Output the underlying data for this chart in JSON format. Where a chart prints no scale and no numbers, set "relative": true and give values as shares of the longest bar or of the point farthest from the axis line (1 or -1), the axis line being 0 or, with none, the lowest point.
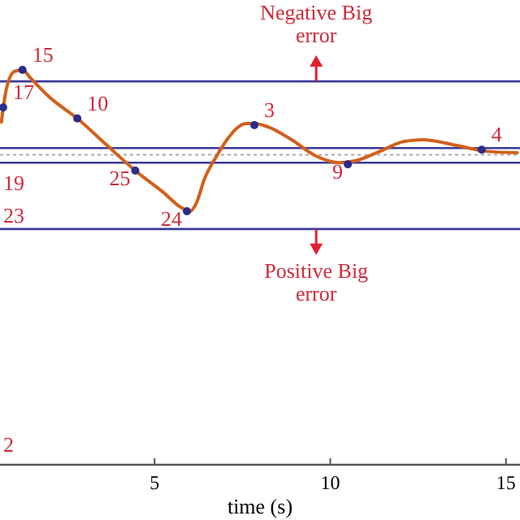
{
  "chart_data": {
    "type": "line",
    "relative": true,
    "xlabel": "time (s)",
    "xlim": [
      0.6,
      15.4
    ],
    "xticks": [
      5,
      10,
      15
    ],
    "series": [
      {
        "line_style": "solid",
        "color": "#d2601a",
        "x": [
          0.64,
          0.78,
          1.01,
          1.24,
          1.47,
          2.02,
          2.8,
          3.62,
          4.45,
          5.23,
          5.78,
          6.01,
          6.19,
          6.42,
          6.74,
          7.06,
          7.29,
          7.61,
          7.84,
          8.21,
          8.9,
          9.59,
          10.28,
          10.73,
          11.42,
          12.11,
          12.66,
          13.26,
          13.94,
          14.4,
          15.32
        ],
        "values": [
          0.868,
          0.951,
          0.996,
          1.0,
          0.979,
          0.93,
          0.877,
          0.811,
          0.745,
          0.691,
          0.65,
          0.642,
          0.663,
          0.724,
          0.778,
          0.823,
          0.848,
          0.864,
          0.864,
          0.856,
          0.823,
          0.782,
          0.765,
          0.77,
          0.794,
          0.819,
          0.823,
          0.815,
          0.802,
          0.794,
          0.79
        ]
      },
      {
        "type": "scatter",
        "marker": "circle",
        "color": "#2b2b8c",
        "x": [
          1.24,
          0.69,
          2.8,
          4.45,
          5.92,
          7.84,
          10.5,
          14.31
        ],
        "values": [
          1.0,
          0.905,
          0.877,
          0.745,
          0.642,
          0.86,
          0.761,
          0.798
        ]
      }
    ],
    "ref_lines": [
      {
        "axis": "y",
        "value": 0.971,
        "label": "Negative Big error",
        "color": "#3a3a9a",
        "line_style": "solid"
      },
      {
        "axis": "y",
        "value": 0.802,
        "color": "#3a3a9a",
        "line_style": "solid"
      },
      {
        "axis": "y",
        "value": 0.785,
        "color": "#aaaaaa",
        "line_style": "dotted"
      },
      {
        "axis": "y",
        "value": 0.765,
        "color": "#3a3a9a",
        "line_style": "solid"
      },
      {
        "axis": "y",
        "value": 0.597,
        "label": "Positive Big error",
        "color": "#3a3a9a",
        "line_style": "solid"
      }
    ],
    "annotations": [
      {
        "text": "15",
        "x": 1.24,
        "y": 1.0
      },
      {
        "text": "17",
        "x": 0.69,
        "y": 0.905
      },
      {
        "text": "10",
        "x": 2.8,
        "y": 0.877
      },
      {
        "text": "25",
        "x": 4.45,
        "y": 0.745
      },
      {
        "text": "24",
        "x": 5.92,
        "y": 0.642
      },
      {
        "text": "3",
        "x": 7.84,
        "y": 0.86
      },
      {
        "text": "9",
        "x": 10.5,
        "y": 0.761
      },
      {
        "text": "4",
        "x": 14.31,
        "y": 0.798
      },
      "19",
      "23",
      "2"
    ]
  }
}
